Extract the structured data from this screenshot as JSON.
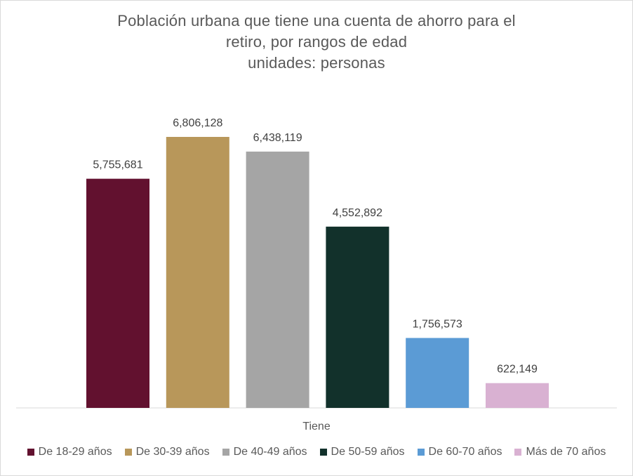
{
  "chart_data": {
    "type": "bar",
    "title_lines": [
      "Población urbana que tiene una cuenta de ahorro para el",
      "retiro, por rangos de edad",
      "unidades: personas"
    ],
    "categories": [
      "Tiene"
    ],
    "xlabel": "Tiene",
    "ylim": [
      0,
      7000000
    ],
    "grid": false,
    "legend_position": "bottom",
    "series": [
      {
        "name": "De 18-29 años",
        "value": 5755681,
        "label": "5,755,681",
        "color": "#62112f"
      },
      {
        "name": "De 30-39 años",
        "value": 6806128,
        "label": "6,806,128",
        "color": "#b8975a"
      },
      {
        "name": "De 40-49 años",
        "value": 6438119,
        "label": "6,438,119",
        "color": "#a5a5a5"
      },
      {
        "name": "De 50-59 años",
        "value": 4552892,
        "label": "4,552,892",
        "color": "#12312b"
      },
      {
        "name": "De 60-70 años",
        "value": 1756573,
        "label": "1,756,573",
        "color": "#5b9bd5"
      },
      {
        "name": "Más de 70 años",
        "value": 622149,
        "label": "622,149",
        "color": "#d9b1d2"
      }
    ]
  }
}
